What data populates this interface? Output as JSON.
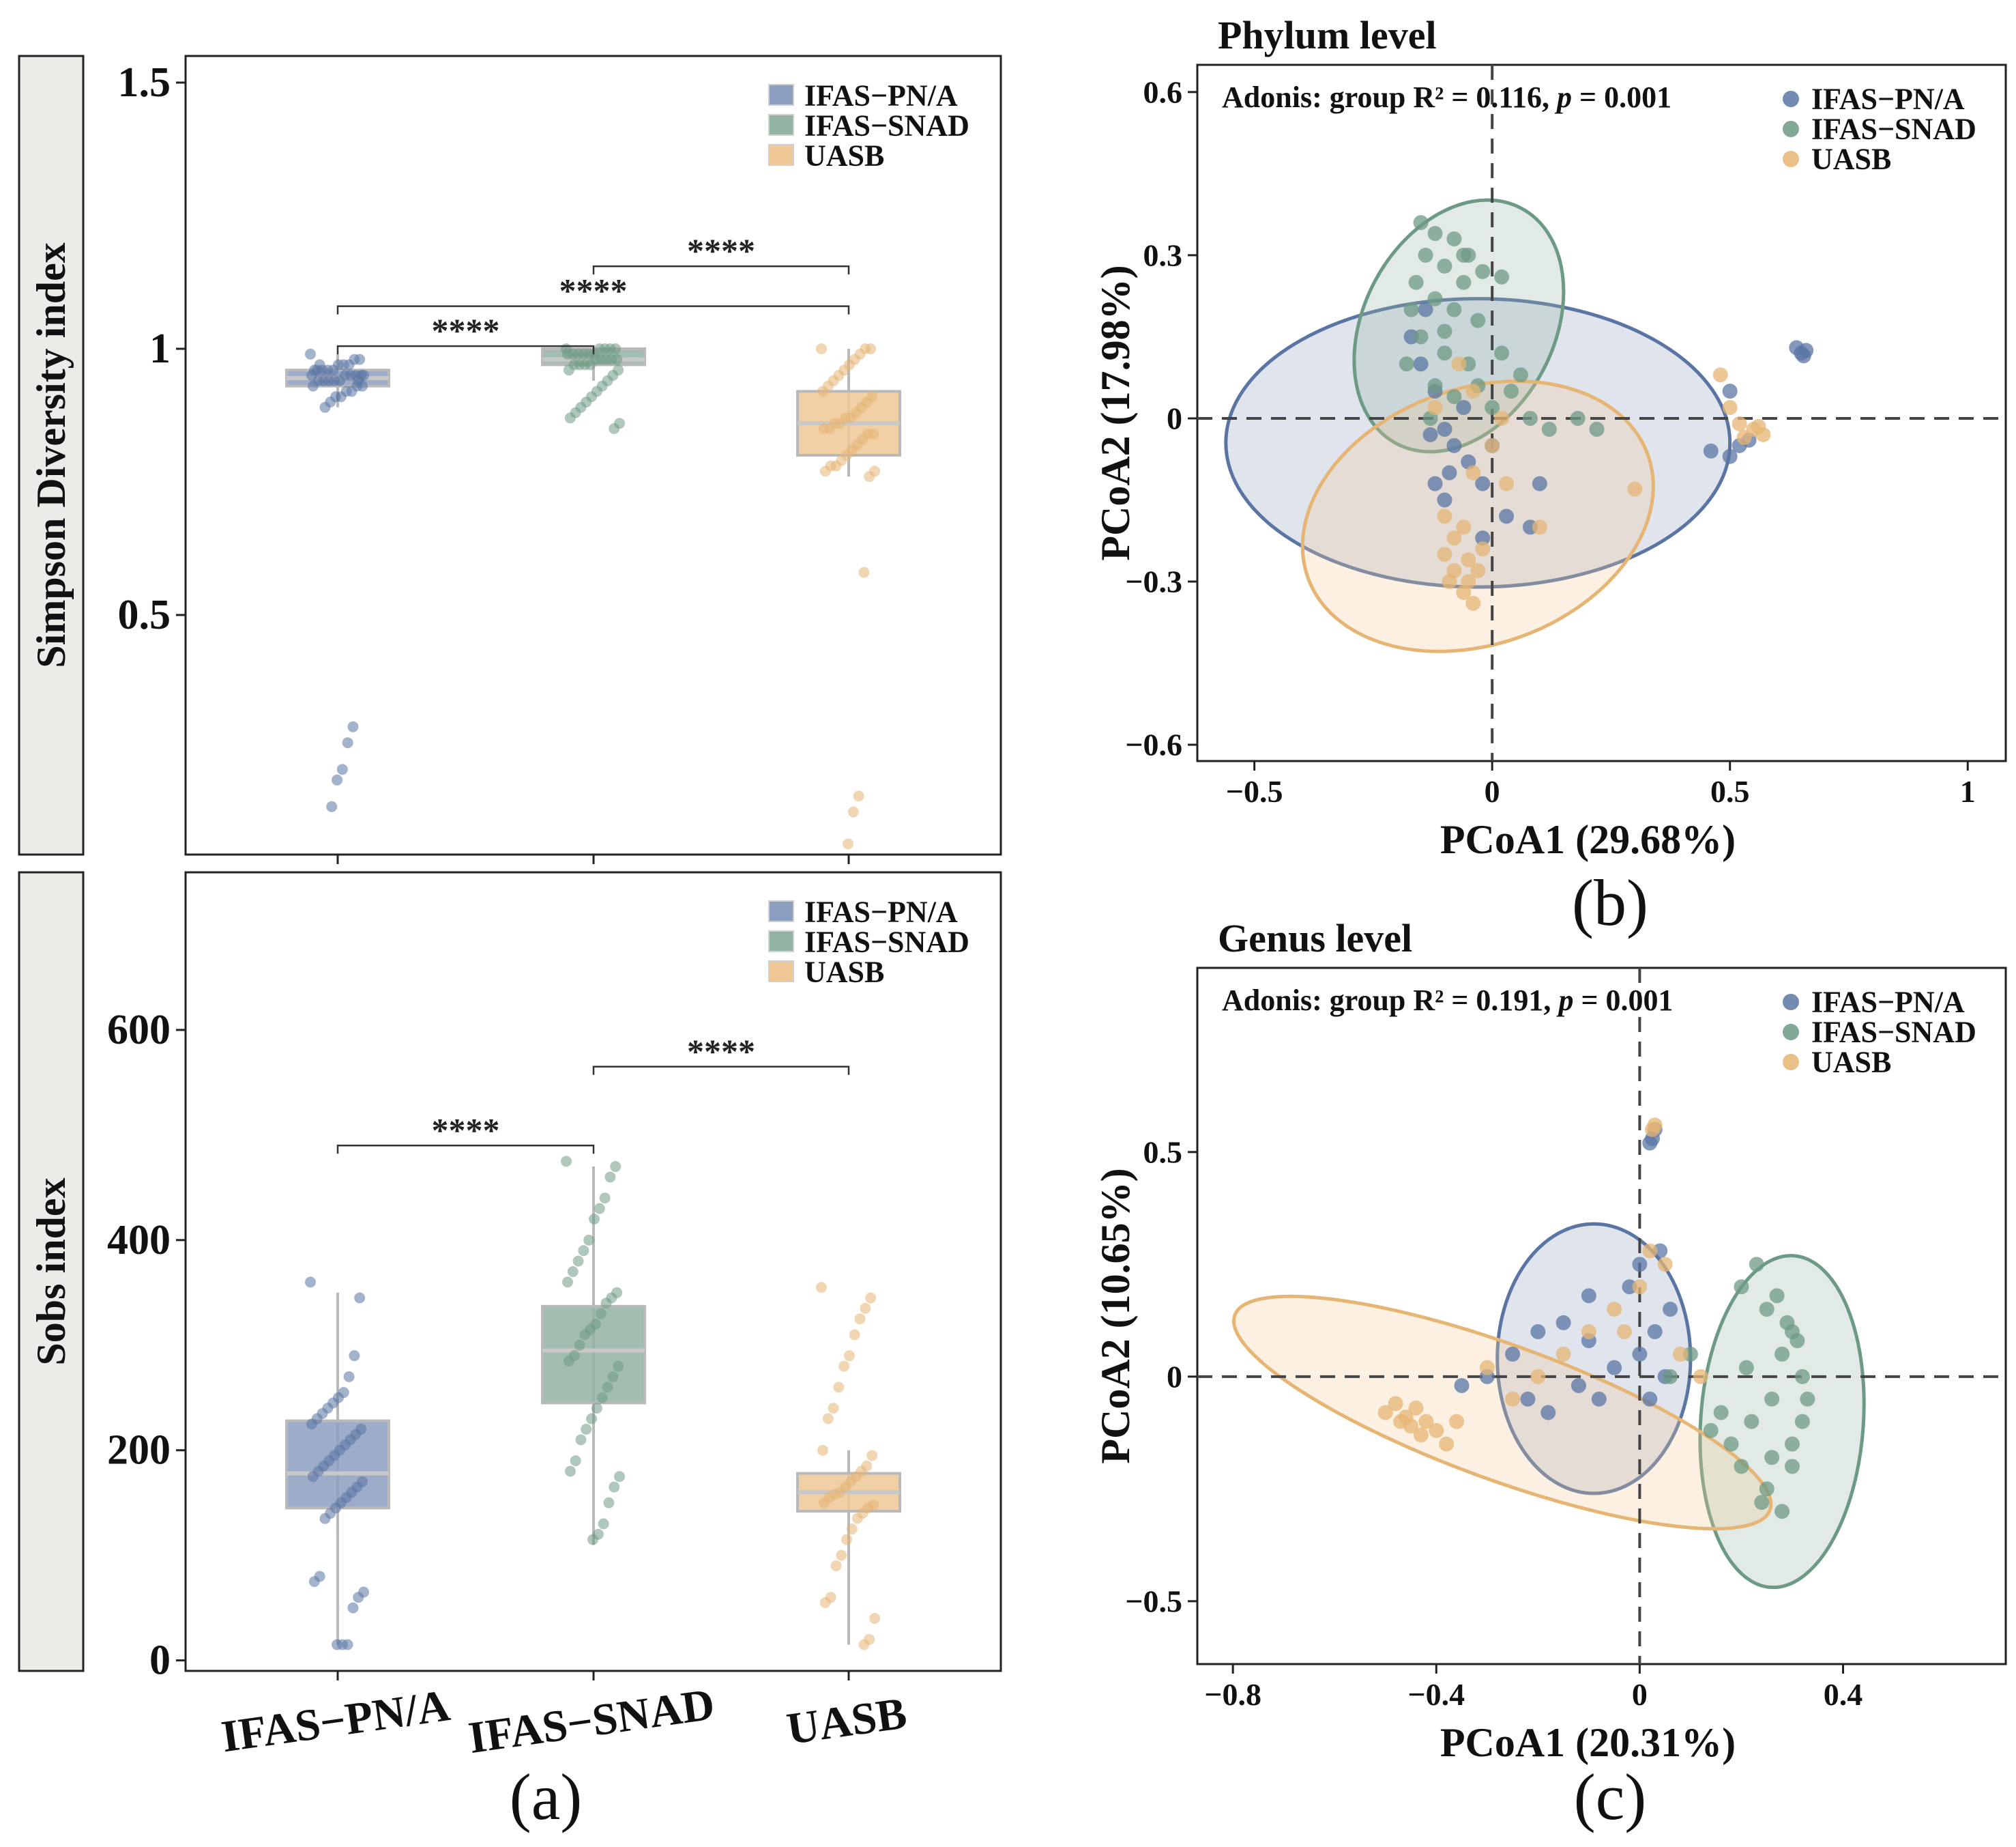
{
  "colors": {
    "pn": "#5a75a3",
    "snad": "#6d9a84",
    "uasb": "#e6b574",
    "pn_fill": "#8c9ec0",
    "snad_fill": "#93b3a3",
    "uasb_fill": "#efc896"
  },
  "chart_data": [
    {
      "id": "simpson",
      "type": "box",
      "panel_label": "",
      "ylabel": "Simpson Diversity index",
      "categories": [
        "IFAS−PN/A",
        "IFAS−SNAD",
        "UASB"
      ],
      "yticks": [
        "1.5",
        "1",
        "0.5"
      ],
      "ytick_values": [
        1.5,
        1.0,
        0.5
      ],
      "ylim": [
        0.05,
        1.55
      ],
      "legend": [
        "IFAS−PN/A",
        "IFAS−SNAD",
        "UASB"
      ],
      "boxes": [
        {
          "q1": 0.93,
          "median": 0.945,
          "q3": 0.96,
          "whisker_low": 0.89,
          "whisker_high": 0.99
        },
        {
          "q1": 0.97,
          "median": 0.98,
          "q3": 1.0,
          "whisker_low": 0.94,
          "whisker_high": 1.0
        },
        {
          "q1": 0.8,
          "median": 0.86,
          "q3": 0.92,
          "whisker_low": 0.76,
          "whisker_high": 1.0
        }
      ],
      "points": [
        [
          0.99,
          0.98,
          0.98,
          0.97,
          0.97,
          0.97,
          0.96,
          0.96,
          0.96,
          0.96,
          0.95,
          0.95,
          0.95,
          0.95,
          0.95,
          0.94,
          0.94,
          0.94,
          0.94,
          0.94,
          0.93,
          0.93,
          0.93,
          0.92,
          0.92,
          0.91,
          0.91,
          0.9,
          0.89,
          0.97,
          0.96,
          0.95,
          0.94,
          0.29,
          0.26,
          0.21,
          0.19,
          0.14
        ],
        [
          1.0,
          1.0,
          1.0,
          1.0,
          1.0,
          0.99,
          0.99,
          0.99,
          0.99,
          0.99,
          0.99,
          0.98,
          0.98,
          0.98,
          0.98,
          0.98,
          0.97,
          0.97,
          0.97,
          0.97,
          0.96,
          0.96,
          0.95,
          0.94,
          0.93,
          0.92,
          0.91,
          0.9,
          0.89,
          0.88,
          0.87,
          0.86,
          0.85
        ],
        [
          1.0,
          1.0,
          1.0,
          0.99,
          0.98,
          0.97,
          0.96,
          0.95,
          0.94,
          0.93,
          0.92,
          0.91,
          0.9,
          0.89,
          0.88,
          0.87,
          0.87,
          0.86,
          0.86,
          0.85,
          0.85,
          0.84,
          0.84,
          0.83,
          0.82,
          0.81,
          0.8,
          0.79,
          0.78,
          0.78,
          0.77,
          0.77,
          0.76,
          0.58,
          0.16,
          0.13,
          0.07
        ]
      ],
      "comparisons": [
        {
          "from": 0,
          "to": 1,
          "label": "****",
          "y": 1.005
        },
        {
          "from": 0,
          "to": 2,
          "label": "****",
          "y": 1.08
        },
        {
          "from": 1,
          "to": 2,
          "label": "****",
          "y": 1.155
        }
      ]
    },
    {
      "id": "sobs",
      "type": "box",
      "panel_label": "(a)",
      "ylabel": "Sobs index",
      "categories": [
        "IFAS−PN/A",
        "IFAS−SNAD",
        "UASB"
      ],
      "yticks": [
        "600",
        "400",
        "200",
        "0"
      ],
      "ytick_values": [
        600,
        400,
        200,
        0
      ],
      "ylim": [
        -10,
        750
      ],
      "legend": [
        "IFAS−PN/A",
        "IFAS−SNAD",
        "UASB"
      ],
      "boxes": [
        {
          "q1": 145,
          "median": 178,
          "q3": 228,
          "whisker_low": 15,
          "whisker_high": 350
        },
        {
          "q1": 245,
          "median": 295,
          "q3": 337,
          "whisker_low": 110,
          "whisker_high": 470
        },
        {
          "q1": 142,
          "median": 160,
          "q3": 178,
          "whisker_low": 15,
          "whisker_high": 200
        }
      ],
      "points": [
        [
          360,
          345,
          290,
          270,
          255,
          250,
          245,
          240,
          235,
          230,
          225,
          220,
          215,
          210,
          205,
          200,
          195,
          190,
          185,
          180,
          175,
          170,
          165,
          160,
          155,
          150,
          145,
          140,
          135,
          80,
          75,
          65,
          60,
          50,
          15,
          15,
          15
        ],
        [
          475,
          470,
          460,
          440,
          430,
          420,
          400,
          390,
          380,
          370,
          360,
          350,
          345,
          340,
          330,
          320,
          315,
          310,
          300,
          290,
          285,
          280,
          270,
          260,
          250,
          240,
          230,
          220,
          210,
          190,
          180,
          175,
          165,
          150,
          130,
          120,
          115
        ],
        [
          355,
          345,
          335,
          325,
          310,
          290,
          280,
          260,
          240,
          230,
          200,
          195,
          185,
          180,
          175,
          170,
          165,
          160,
          158,
          155,
          150,
          148,
          145,
          140,
          135,
          125,
          115,
          100,
          90,
          60,
          55,
          40,
          20,
          15
        ]
      ],
      "comparisons": [
        {
          "from": 0,
          "to": 1,
          "label": "****",
          "y": 490
        },
        {
          "from": 1,
          "to": 2,
          "label": "****",
          "y": 565
        }
      ]
    },
    {
      "id": "phylum",
      "type": "scatter",
      "title": "Phylum level",
      "panel_label": "(b)",
      "annotation": "Adonis: group R² = 0.116, ",
      "annotation_p": "p",
      "annotation_tail": " = 0.001",
      "xlabel": "PCoA1 (29.68%)",
      "ylabel": "PCoA2 (17.98%)",
      "xlim": [
        -0.62,
        1.08
      ],
      "ylim": [
        -0.63,
        0.65
      ],
      "xticks": [
        "−0.5",
        "0",
        "0.5",
        "1"
      ],
      "xtick_values": [
        -0.5,
        0,
        0.5,
        1
      ],
      "yticks": [
        "0.6",
        "0.3",
        "0",
        "−0.3",
        "−0.6"
      ],
      "ytick_values": [
        0.6,
        0.3,
        0,
        -0.3,
        -0.6
      ],
      "legend": [
        "IFAS−PN/A",
        "IFAS−SNAD",
        "UASB"
      ],
      "ellipses": [
        {
          "cx": -0.03,
          "cy": -0.045,
          "rx": 0.53,
          "ry": 0.265,
          "angle": 0
        },
        {
          "cx": -0.07,
          "cy": 0.17,
          "rx": 0.28,
          "ry": 0.175,
          "angle": 62
        },
        {
          "cx": -0.03,
          "cy": -0.18,
          "rx": 0.38,
          "ry": 0.235,
          "angle": 20
        }
      ],
      "points": [
        [
          [
            -0.15,
            0.1
          ],
          [
            -0.12,
            0.05
          ],
          [
            -0.1,
            -0.02
          ],
          [
            -0.08,
            -0.05
          ],
          [
            -0.12,
            -0.12
          ],
          [
            -0.1,
            -0.15
          ],
          [
            -0.05,
            -0.08
          ],
          [
            -0.02,
            -0.12
          ],
          [
            0.03,
            -0.18
          ],
          [
            0.08,
            -0.2
          ],
          [
            -0.14,
            0.2
          ],
          [
            -0.17,
            0.15
          ],
          [
            -0.06,
            0.02
          ],
          [
            0.0,
            -0.05
          ],
          [
            -0.13,
            -0.03
          ],
          [
            0.1,
            -0.12
          ],
          [
            -0.02,
            -0.22
          ],
          [
            -0.09,
            -0.1
          ],
          [
            0.46,
            -0.06
          ],
          [
            0.5,
            -0.07
          ],
          [
            0.52,
            -0.05
          ],
          [
            0.54,
            -0.04
          ],
          [
            0.64,
            0.13
          ],
          [
            0.65,
            0.12
          ],
          [
            0.66,
            0.125
          ],
          [
            0.655,
            0.115
          ],
          [
            0.5,
            0.05
          ]
        ],
        [
          [
            -0.15,
            0.36
          ],
          [
            -0.12,
            0.34
          ],
          [
            -0.08,
            0.33
          ],
          [
            -0.05,
            0.3
          ],
          [
            -0.14,
            0.3
          ],
          [
            -0.1,
            0.28
          ],
          [
            -0.02,
            0.27
          ],
          [
            0.02,
            0.26
          ],
          [
            -0.06,
            0.25
          ],
          [
            -0.16,
            0.25
          ],
          [
            -0.12,
            0.22
          ],
          [
            -0.08,
            0.2
          ],
          [
            -0.03,
            0.18
          ],
          [
            -0.17,
            0.2
          ],
          [
            -0.15,
            0.15
          ],
          [
            -0.1,
            0.12
          ],
          [
            -0.05,
            0.1
          ],
          [
            0.02,
            0.12
          ],
          [
            0.06,
            0.08
          ],
          [
            -0.12,
            0.06
          ],
          [
            -0.08,
            0.04
          ],
          [
            -0.03,
            0.06
          ],
          [
            0.0,
            0.02
          ],
          [
            0.08,
            0.0
          ],
          [
            0.12,
            -0.02
          ],
          [
            0.18,
            0.0
          ],
          [
            0.22,
            -0.02
          ],
          [
            0.04,
            0.05
          ],
          [
            -0.18,
            0.1
          ],
          [
            -0.13,
            0.0
          ],
          [
            -0.06,
            0.3
          ],
          [
            -0.1,
            0.16
          ]
        ],
        [
          [
            -0.1,
            -0.25
          ],
          [
            -0.08,
            -0.28
          ],
          [
            -0.05,
            -0.3
          ],
          [
            -0.06,
            -0.32
          ],
          [
            -0.04,
            -0.34
          ],
          [
            -0.08,
            -0.22
          ],
          [
            -0.05,
            -0.26
          ],
          [
            -0.03,
            -0.28
          ],
          [
            -0.06,
            -0.2
          ],
          [
            -0.02,
            -0.24
          ],
          [
            -0.1,
            -0.18
          ],
          [
            -0.04,
            -0.1
          ],
          [
            0.0,
            -0.05
          ],
          [
            -0.07,
            0.1
          ],
          [
            -0.04,
            0.05
          ],
          [
            0.02,
            0.0
          ],
          [
            -0.12,
            0.02
          ],
          [
            0.03,
            -0.12
          ],
          [
            0.1,
            -0.2
          ],
          [
            0.3,
            -0.13
          ],
          [
            0.48,
            0.08
          ],
          [
            0.5,
            0.02
          ],
          [
            0.52,
            -0.01
          ],
          [
            0.55,
            -0.02
          ],
          [
            0.57,
            -0.03
          ],
          [
            0.53,
            -0.035
          ],
          [
            0.56,
            -0.015
          ],
          [
            -0.09,
            -0.3
          ]
        ]
      ]
    },
    {
      "id": "genus",
      "type": "scatter",
      "title": "Genus level",
      "panel_label": "(c)",
      "annotation": "Adonis: group R² = 0.191, ",
      "annotation_p": "p",
      "annotation_tail": " = 0.001",
      "xlabel": "PCoA1 (20.31%)",
      "ylabel": "PCoA2 (10.65%)",
      "xlim": [
        -0.87,
        0.72
      ],
      "ylim": [
        -0.64,
        0.91
      ],
      "xticks": [
        "−0.8",
        "−0.4",
        "0",
        "0.4"
      ],
      "xtick_values": [
        -0.8,
        -0.4,
        0,
        0.4
      ],
      "yticks": [
        "0.5",
        "0",
        "−0.5"
      ],
      "ytick_values": [
        0.5,
        0,
        -0.5
      ],
      "legend": [
        "IFAS−PN/A",
        "IFAS−SNAD",
        "UASB"
      ],
      "ellipses": [
        {
          "cx": -0.09,
          "cy": 0.04,
          "rx": 0.19,
          "ry": 0.3,
          "angle": 0
        },
        {
          "cx": 0.28,
          "cy": -0.1,
          "rx": 0.16,
          "ry": 0.37,
          "angle": -4
        },
        {
          "cx": -0.27,
          "cy": -0.08,
          "rx": 0.56,
          "ry": 0.15,
          "angle": -20
        }
      ],
      "points": [
        [
          [
            -0.25,
            0.05
          ],
          [
            -0.2,
            0.1
          ],
          [
            -0.15,
            0.12
          ],
          [
            -0.1,
            0.08
          ],
          [
            -0.05,
            0.02
          ],
          [
            0.0,
            0.05
          ],
          [
            0.03,
            0.1
          ],
          [
            0.05,
            0.0
          ],
          [
            -0.08,
            -0.05
          ],
          [
            -0.12,
            -0.02
          ],
          [
            -0.18,
            -0.08
          ],
          [
            -0.22,
            -0.05
          ],
          [
            -0.3,
            0.0
          ],
          [
            -0.35,
            -0.02
          ],
          [
            0.02,
            -0.05
          ],
          [
            0.06,
            0.15
          ],
          [
            -0.02,
            0.2
          ],
          [
            0.04,
            0.28
          ],
          [
            0.0,
            0.25
          ],
          [
            -0.1,
            0.18
          ],
          [
            0.03,
            0.55
          ],
          [
            0.025,
            0.53
          ],
          [
            0.02,
            0.52
          ]
        ],
        [
          [
            0.2,
            0.2
          ],
          [
            0.25,
            0.15
          ],
          [
            0.3,
            0.1
          ],
          [
            0.28,
            0.05
          ],
          [
            0.32,
            0.0
          ],
          [
            0.26,
            -0.05
          ],
          [
            0.22,
            -0.1
          ],
          [
            0.18,
            -0.15
          ],
          [
            0.2,
            -0.2
          ],
          [
            0.25,
            -0.25
          ],
          [
            0.28,
            -0.3
          ],
          [
            0.24,
            -0.28
          ],
          [
            0.3,
            -0.2
          ],
          [
            0.32,
            -0.1
          ],
          [
            0.29,
            0.12
          ],
          [
            0.31,
            0.08
          ],
          [
            0.27,
            0.18
          ],
          [
            0.33,
            -0.05
          ],
          [
            0.21,
            0.02
          ],
          [
            0.16,
            -0.08
          ],
          [
            0.14,
            -0.12
          ],
          [
            0.3,
            -0.15
          ],
          [
            0.23,
            0.25
          ],
          [
            0.26,
            -0.18
          ],
          [
            0.1,
            0.05
          ],
          [
            0.06,
            0.0
          ]
        ],
        [
          [
            -0.5,
            -0.08
          ],
          [
            -0.48,
            -0.06
          ],
          [
            -0.46,
            -0.09
          ],
          [
            -0.44,
            -0.07
          ],
          [
            -0.42,
            -0.1
          ],
          [
            -0.4,
            -0.12
          ],
          [
            -0.45,
            -0.11
          ],
          [
            -0.47,
            -0.1
          ],
          [
            -0.43,
            -0.13
          ],
          [
            -0.38,
            -0.15
          ],
          [
            -0.36,
            -0.1
          ],
          [
            -0.2,
            0.0
          ],
          [
            -0.15,
            0.05
          ],
          [
            -0.1,
            0.1
          ],
          [
            -0.05,
            0.15
          ],
          [
            0.0,
            0.2
          ],
          [
            0.05,
            0.25
          ],
          [
            0.02,
            0.28
          ],
          [
            -0.03,
            0.1
          ],
          [
            0.08,
            0.05
          ],
          [
            0.12,
            0.0
          ],
          [
            -0.25,
            -0.05
          ],
          [
            -0.3,
            0.02
          ],
          [
            0.03,
            0.56
          ],
          [
            0.025,
            0.55
          ]
        ]
      ]
    }
  ]
}
